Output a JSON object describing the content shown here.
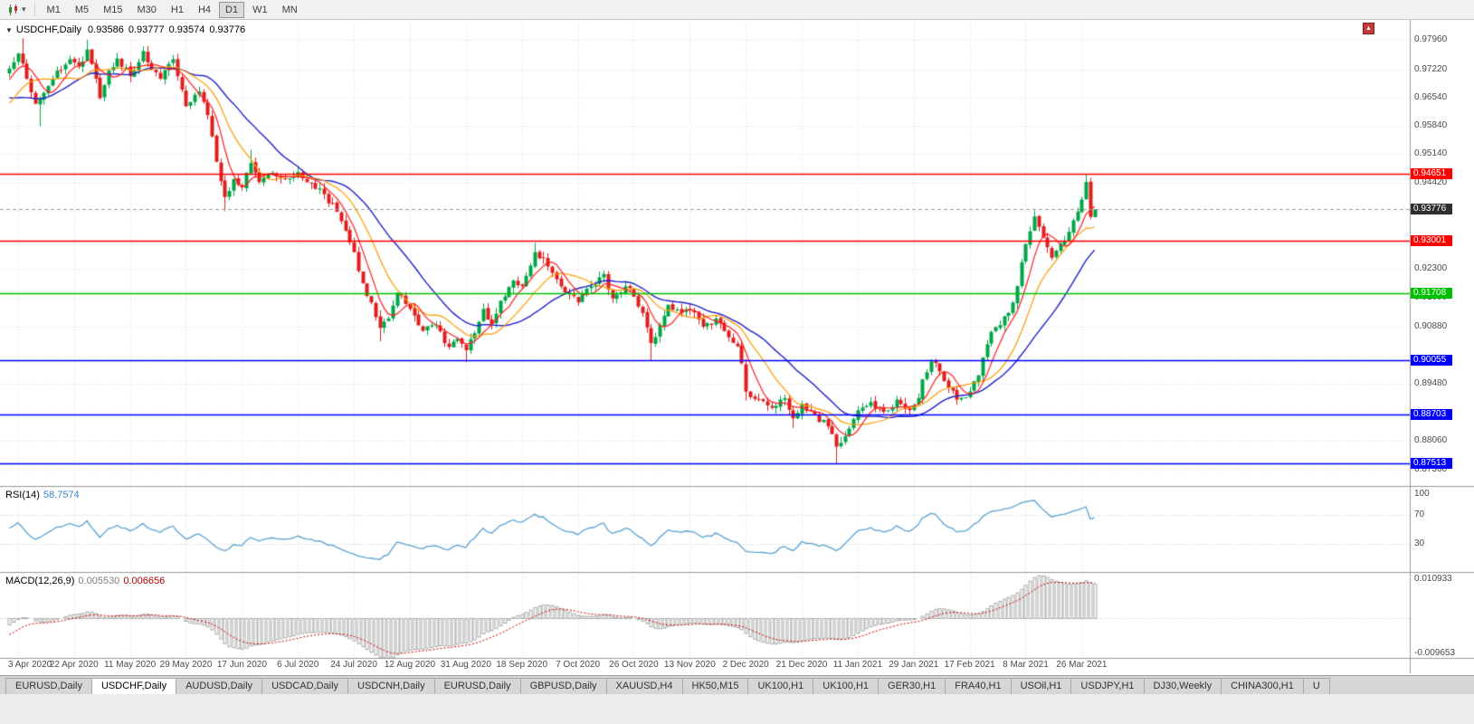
{
  "toolbar": {
    "timeframes": [
      "M1",
      "M5",
      "M15",
      "M30",
      "H1",
      "H4",
      "D1",
      "W1",
      "MN"
    ],
    "active_timeframe": "D1",
    "caret_icon": "▾"
  },
  "chart": {
    "collapse_icon": "▼",
    "symbol_label": "USDCHF,Daily",
    "ohlc": {
      "open": "0.93586",
      "high": "0.93777",
      "low": "0.93574",
      "close": "0.93776"
    }
  },
  "rsi": {
    "label": "RSI(14)",
    "value": "58.7574",
    "levels": [
      "100",
      "70",
      "30"
    ]
  },
  "macd": {
    "label": "MACD(12,26,9)",
    "value_main": "0.005530",
    "value_signal": "0.006656",
    "axis": [
      "0.010933",
      "-0.009653"
    ]
  },
  "price_axis": {
    "ticks": [
      "0.97960",
      "0.97220",
      "0.96540",
      "0.95840",
      "0.95140",
      "0.94420",
      "0.92300",
      "0.91600",
      "0.90880",
      "0.89480",
      "0.88060",
      "0.87360"
    ]
  },
  "date_axis": [
    "3 Apr 2020",
    "22 Apr 2020",
    "11 May 2020",
    "29 May 2020",
    "17 Jun 2020",
    "6 Jul 2020",
    "24 Jul 2020",
    "12 Aug 2020",
    "31 Aug 2020",
    "18 Sep 2020",
    "7 Oct 2020",
    "26 Oct 2020",
    "13 Nov 2020",
    "2 Dec 2020",
    "21 Dec 2020",
    "11 Jan 2021",
    "29 Jan 2021",
    "17 Feb 2021",
    "8 Mar 2021",
    "26 Mar 2021"
  ],
  "tabs": {
    "items": [
      "EURUSD,Daily",
      "USDCHF,Daily",
      "AUDUSD,Daily",
      "USDCAD,Daily",
      "USDCNH,Daily",
      "EURUSD,Daily",
      "GBPUSD,Daily",
      "XAUUSD,H4",
      "HK50,M15",
      "UK100,H1",
      "UK100,H1",
      "GER30,H1",
      "FRA40,H1",
      "USOil,H1",
      "USDJPY,H1",
      "DJ30,Weekly",
      "CHINA300,H1",
      "U"
    ],
    "active_index": 1
  },
  "chart_data": {
    "type": "candlestick",
    "symbol": "USDCHF",
    "timeframe": "Daily",
    "num_bars": 253,
    "first_label_bar": 2,
    "bars_per_label": 13,
    "price_range": {
      "top": 0.9845,
      "bottom": 0.8695
    },
    "colors": {
      "bull": "#00a546",
      "bear": "#e01f1f"
    },
    "y_ticks": [
      "0.97960",
      "0.97220",
      "0.96540",
      "0.95840",
      "0.95140",
      "0.94420",
      "0.92300",
      "0.91600",
      "0.90880",
      "0.89480",
      "0.88060",
      "0.87360"
    ],
    "grid_extra": [
      0.9374,
      0.9302,
      0.9016,
      0.8876
    ],
    "horizontal_lines": [
      {
        "value": 0.94651,
        "label": "0.94651",
        "color": "#ff0000"
      },
      {
        "value": 0.93001,
        "label": "0.93001",
        "color": "#ff0000"
      },
      {
        "value": 0.91708,
        "label": "0.91708",
        "color": "#00c000"
      },
      {
        "value": 0.90055,
        "label": "0.90055",
        "color": "#0000ff"
      },
      {
        "value": 0.88703,
        "label": "0.88703",
        "color": "#0000ff"
      },
      {
        "value": 0.87513,
        "label": "0.87513",
        "color": "#0000ff"
      }
    ],
    "current_price": {
      "value": 0.93776,
      "label": "0.93776",
      "badge_color": "#2f2f2f"
    },
    "moving_averages": [
      {
        "name": "ma-fast",
        "period": 6,
        "color": "#ff1e1e"
      },
      {
        "name": "ma-medium",
        "period": 13,
        "color": "#ff9b00"
      },
      {
        "name": "ma-slow",
        "period": 24,
        "color": "#2222cc"
      }
    ],
    "rsi": {
      "period": 14,
      "color": "#5aa2d4",
      "levels": [
        100,
        70,
        30
      ],
      "range": [
        -10,
        110
      ]
    },
    "macd": {
      "fast": 12,
      "slow": 26,
      "signal": 9,
      "hist_color": "#a8a8a8",
      "signal_color": "#cc0000",
      "range": [
        -0.009653,
        0.010933
      ]
    },
    "pre_anchors": [
      [
        -30,
        0.9895
      ],
      [
        -22,
        0.9745
      ],
      [
        -14,
        0.959
      ],
      [
        -8,
        0.9575
      ],
      [
        -4,
        0.9685
      ],
      [
        -1,
        0.9712
      ]
    ],
    "close_anchors": [
      [
        0,
        0.9725
      ],
      [
        2,
        0.9762
      ],
      [
        4,
        0.97
      ],
      [
        6,
        0.9638
      ],
      [
        8,
        0.9665
      ],
      [
        11,
        0.972
      ],
      [
        14,
        0.9748
      ],
      [
        16,
        0.973
      ],
      [
        18,
        0.9772
      ],
      [
        20,
        0.97
      ],
      [
        21,
        0.9652
      ],
      [
        23,
        0.972
      ],
      [
        25,
        0.975
      ],
      [
        28,
        0.9706
      ],
      [
        31,
        0.9768
      ],
      [
        33,
        0.9722
      ],
      [
        35,
        0.97
      ],
      [
        38,
        0.9748
      ],
      [
        41,
        0.9632
      ],
      [
        44,
        0.9668
      ],
      [
        46,
        0.961
      ],
      [
        48,
        0.9495
      ],
      [
        50,
        0.9408
      ],
      [
        52,
        0.9452
      ],
      [
        54,
        0.9432
      ],
      [
        56,
        0.9492
      ],
      [
        58,
        0.9445
      ],
      [
        61,
        0.9468
      ],
      [
        64,
        0.9452
      ],
      [
        67,
        0.947
      ],
      [
        70,
        0.9442
      ],
      [
        73,
        0.9415
      ],
      [
        76,
        0.9372
      ],
      [
        78,
        0.9325
      ],
      [
        80,
        0.9272
      ],
      [
        82,
        0.9195
      ],
      [
        84,
        0.9148
      ],
      [
        86,
        0.9085
      ],
      [
        88,
        0.9108
      ],
      [
        90,
        0.9172
      ],
      [
        93,
        0.9132
      ],
      [
        96,
        0.9078
      ],
      [
        99,
        0.9092
      ],
      [
        102,
        0.9038
      ],
      [
        104,
        0.9058
      ],
      [
        106,
        0.903
      ],
      [
        108,
        0.9072
      ],
      [
        110,
        0.9132
      ],
      [
        112,
        0.9095
      ],
      [
        114,
        0.9152
      ],
      [
        117,
        0.9202
      ],
      [
        119,
        0.9188
      ],
      [
        122,
        0.9272
      ],
      [
        124,
        0.9258
      ],
      [
        127,
        0.9205
      ],
      [
        130,
        0.9168
      ],
      [
        132,
        0.9148
      ],
      [
        135,
        0.9188
      ],
      [
        138,
        0.9218
      ],
      [
        140,
        0.9158
      ],
      [
        143,
        0.9188
      ],
      [
        145,
        0.9162
      ],
      [
        147,
        0.9122
      ],
      [
        149,
        0.9048
      ],
      [
        151,
        0.9092
      ],
      [
        153,
        0.9142
      ],
      [
        156,
        0.9122
      ],
      [
        158,
        0.9128
      ],
      [
        161,
        0.9088
      ],
      [
        164,
        0.9108
      ],
      [
        167,
        0.9062
      ],
      [
        169,
        0.904
      ],
      [
        170,
        0.8998
      ],
      [
        171,
        0.8928
      ],
      [
        174,
        0.8908
      ],
      [
        177,
        0.8888
      ],
      [
        180,
        0.8912
      ],
      [
        182,
        0.8862
      ],
      [
        184,
        0.8898
      ],
      [
        187,
        0.8872
      ],
      [
        190,
        0.8842
      ],
      [
        192,
        0.8792
      ],
      [
        194,
        0.8818
      ],
      [
        197,
        0.8882
      ],
      [
        200,
        0.8902
      ],
      [
        203,
        0.8878
      ],
      [
        206,
        0.8908
      ],
      [
        209,
        0.8882
      ],
      [
        211,
        0.8912
      ],
      [
        212,
        0.8958
      ],
      [
        214,
        0.9002
      ],
      [
        216,
        0.8978
      ],
      [
        218,
        0.8938
      ],
      [
        220,
        0.8908
      ],
      [
        223,
        0.8928
      ],
      [
        225,
        0.8968
      ],
      [
        226,
        0.9012
      ],
      [
        228,
        0.9075
      ],
      [
        230,
        0.9092
      ],
      [
        232,
        0.9122
      ],
      [
        234,
        0.9188
      ],
      [
        236,
        0.9292
      ],
      [
        238,
        0.936
      ],
      [
        240,
        0.9308
      ],
      [
        242,
        0.9258
      ],
      [
        244,
        0.9292
      ],
      [
        246,
        0.9322
      ],
      [
        248,
        0.9372
      ],
      [
        249,
        0.9402
      ],
      [
        250,
        0.9445
      ],
      [
        251,
        0.9359
      ],
      [
        252,
        0.93776
      ]
    ],
    "spikes": [
      [
        3,
        "high",
        0.98
      ],
      [
        7,
        "low",
        0.9583
      ],
      [
        18,
        "high",
        0.9796
      ],
      [
        31,
        "high",
        0.978
      ],
      [
        50,
        "low",
        0.9374
      ],
      [
        56,
        "high",
        0.9525
      ],
      [
        64,
        "high",
        0.94651
      ],
      [
        86,
        "low",
        0.9052
      ],
      [
        106,
        "low",
        0.90005
      ],
      [
        122,
        "high",
        0.9295
      ],
      [
        149,
        "low",
        0.9003
      ],
      [
        171,
        "low",
        0.8906
      ],
      [
        182,
        "low",
        0.8838
      ],
      [
        192,
        "low",
        0.87513
      ],
      [
        214,
        "high",
        0.90055
      ],
      [
        238,
        "high",
        0.9375
      ],
      [
        250,
        "high",
        0.94651
      ]
    ]
  }
}
